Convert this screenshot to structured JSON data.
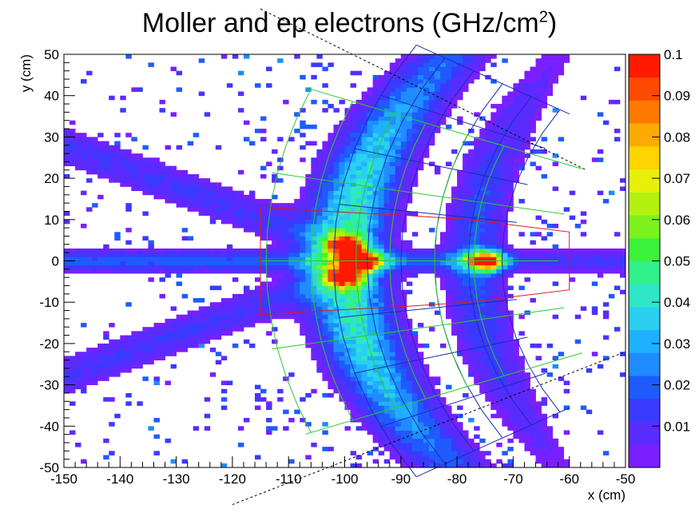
{
  "chart_data": {
    "type": "heatmap",
    "title": "Moller and ep electrons (GHz/cm",
    "title_sup": "2",
    "title_close": ")",
    "xlabel": "x (cm)",
    "ylabel": "y (cm)",
    "xlim": [
      -150,
      -50
    ],
    "ylim": [
      -50,
      50
    ],
    "x_ticks": [
      "-150",
      "-140",
      "-130",
      "-120",
      "-110",
      "-100",
      "-90",
      "-80",
      "-70",
      "-60",
      "-50"
    ],
    "y_ticks": [
      "50",
      "40",
      "30",
      "20",
      "10",
      "0",
      "-10",
      "-20",
      "-30",
      "-40",
      "-50"
    ],
    "z_range": [
      0,
      0.1
    ],
    "colorbar_ticks": [
      "0.1",
      "0.09",
      "0.08",
      "0.07",
      "0.06",
      "0.05",
      "0.04",
      "0.03",
      "0.02",
      "0.01"
    ],
    "bin_size_cm": 1,
    "hotspots": [
      {
        "x": -97,
        "y": 0,
        "value": 0.095
      },
      {
        "x": -75,
        "y": 0,
        "value": 0.1
      },
      {
        "x": -100,
        "y": 4,
        "value": 0.07
      },
      {
        "x": -100,
        "y": -4,
        "value": 0.07
      }
    ],
    "colors": {
      "palette": [
        "#7a1fff",
        "#5a2bff",
        "#3a3aff",
        "#1f5bff",
        "#1f8cff",
        "#1fb0ff",
        "#2ad0f0",
        "#2ee6c8",
        "#30f08a",
        "#3cf23a",
        "#7cf21c",
        "#b4f010",
        "#e8f00a",
        "#ffd400",
        "#ffaa00",
        "#ff7a00",
        "#ff4a00",
        "#ff1a00"
      ],
      "frame": "#000000",
      "blue_overlay": "#1a2bb8",
      "green_overlay": "#2ec82e",
      "red_overlay": "#e01818"
    }
  }
}
